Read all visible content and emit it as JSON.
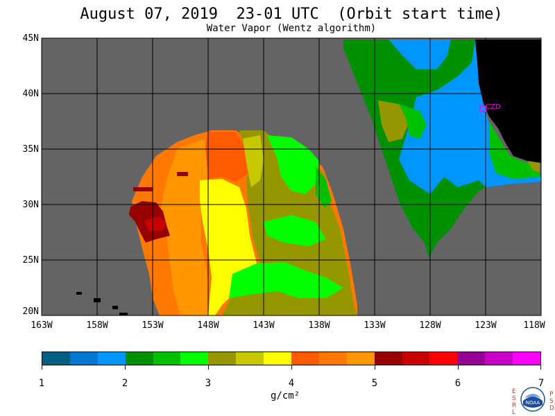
{
  "header": {
    "title": "August 07, 2019  23-01 UTC  (Orbit start time)",
    "subtitle": "Water Vapor (Wentz algorithm)"
  },
  "map": {
    "lat_labels": [
      "45N",
      "40N",
      "35N",
      "30N",
      "25N",
      "20N"
    ],
    "lon_labels": [
      "163W",
      "158W",
      "153W",
      "148W",
      "143W",
      "138W",
      "133W",
      "128W",
      "123W",
      "118W"
    ],
    "station_label": "CZD",
    "colors": {
      "no_data": "#646464",
      "land": "#000000",
      "station": "#ff00ff"
    }
  },
  "colorbar": {
    "tick_labels": [
      "1",
      "2",
      "3",
      "4",
      "5",
      "6",
      "7"
    ],
    "units": "g/cm²",
    "colors": [
      "#005f87",
      "#0078d0",
      "#0096ff",
      "#009000",
      "#00c000",
      "#00ff00",
      "#969600",
      "#c8c800",
      "#ffff00",
      "#ff5a00",
      "#ff7800",
      "#ff9600",
      "#960000",
      "#c80000",
      "#ff0000",
      "#960096",
      "#c800c8",
      "#ff00ff"
    ]
  },
  "logo": {
    "left_letters": "ESRL",
    "right_letters": "PSD",
    "center_text": "NOAA"
  }
}
